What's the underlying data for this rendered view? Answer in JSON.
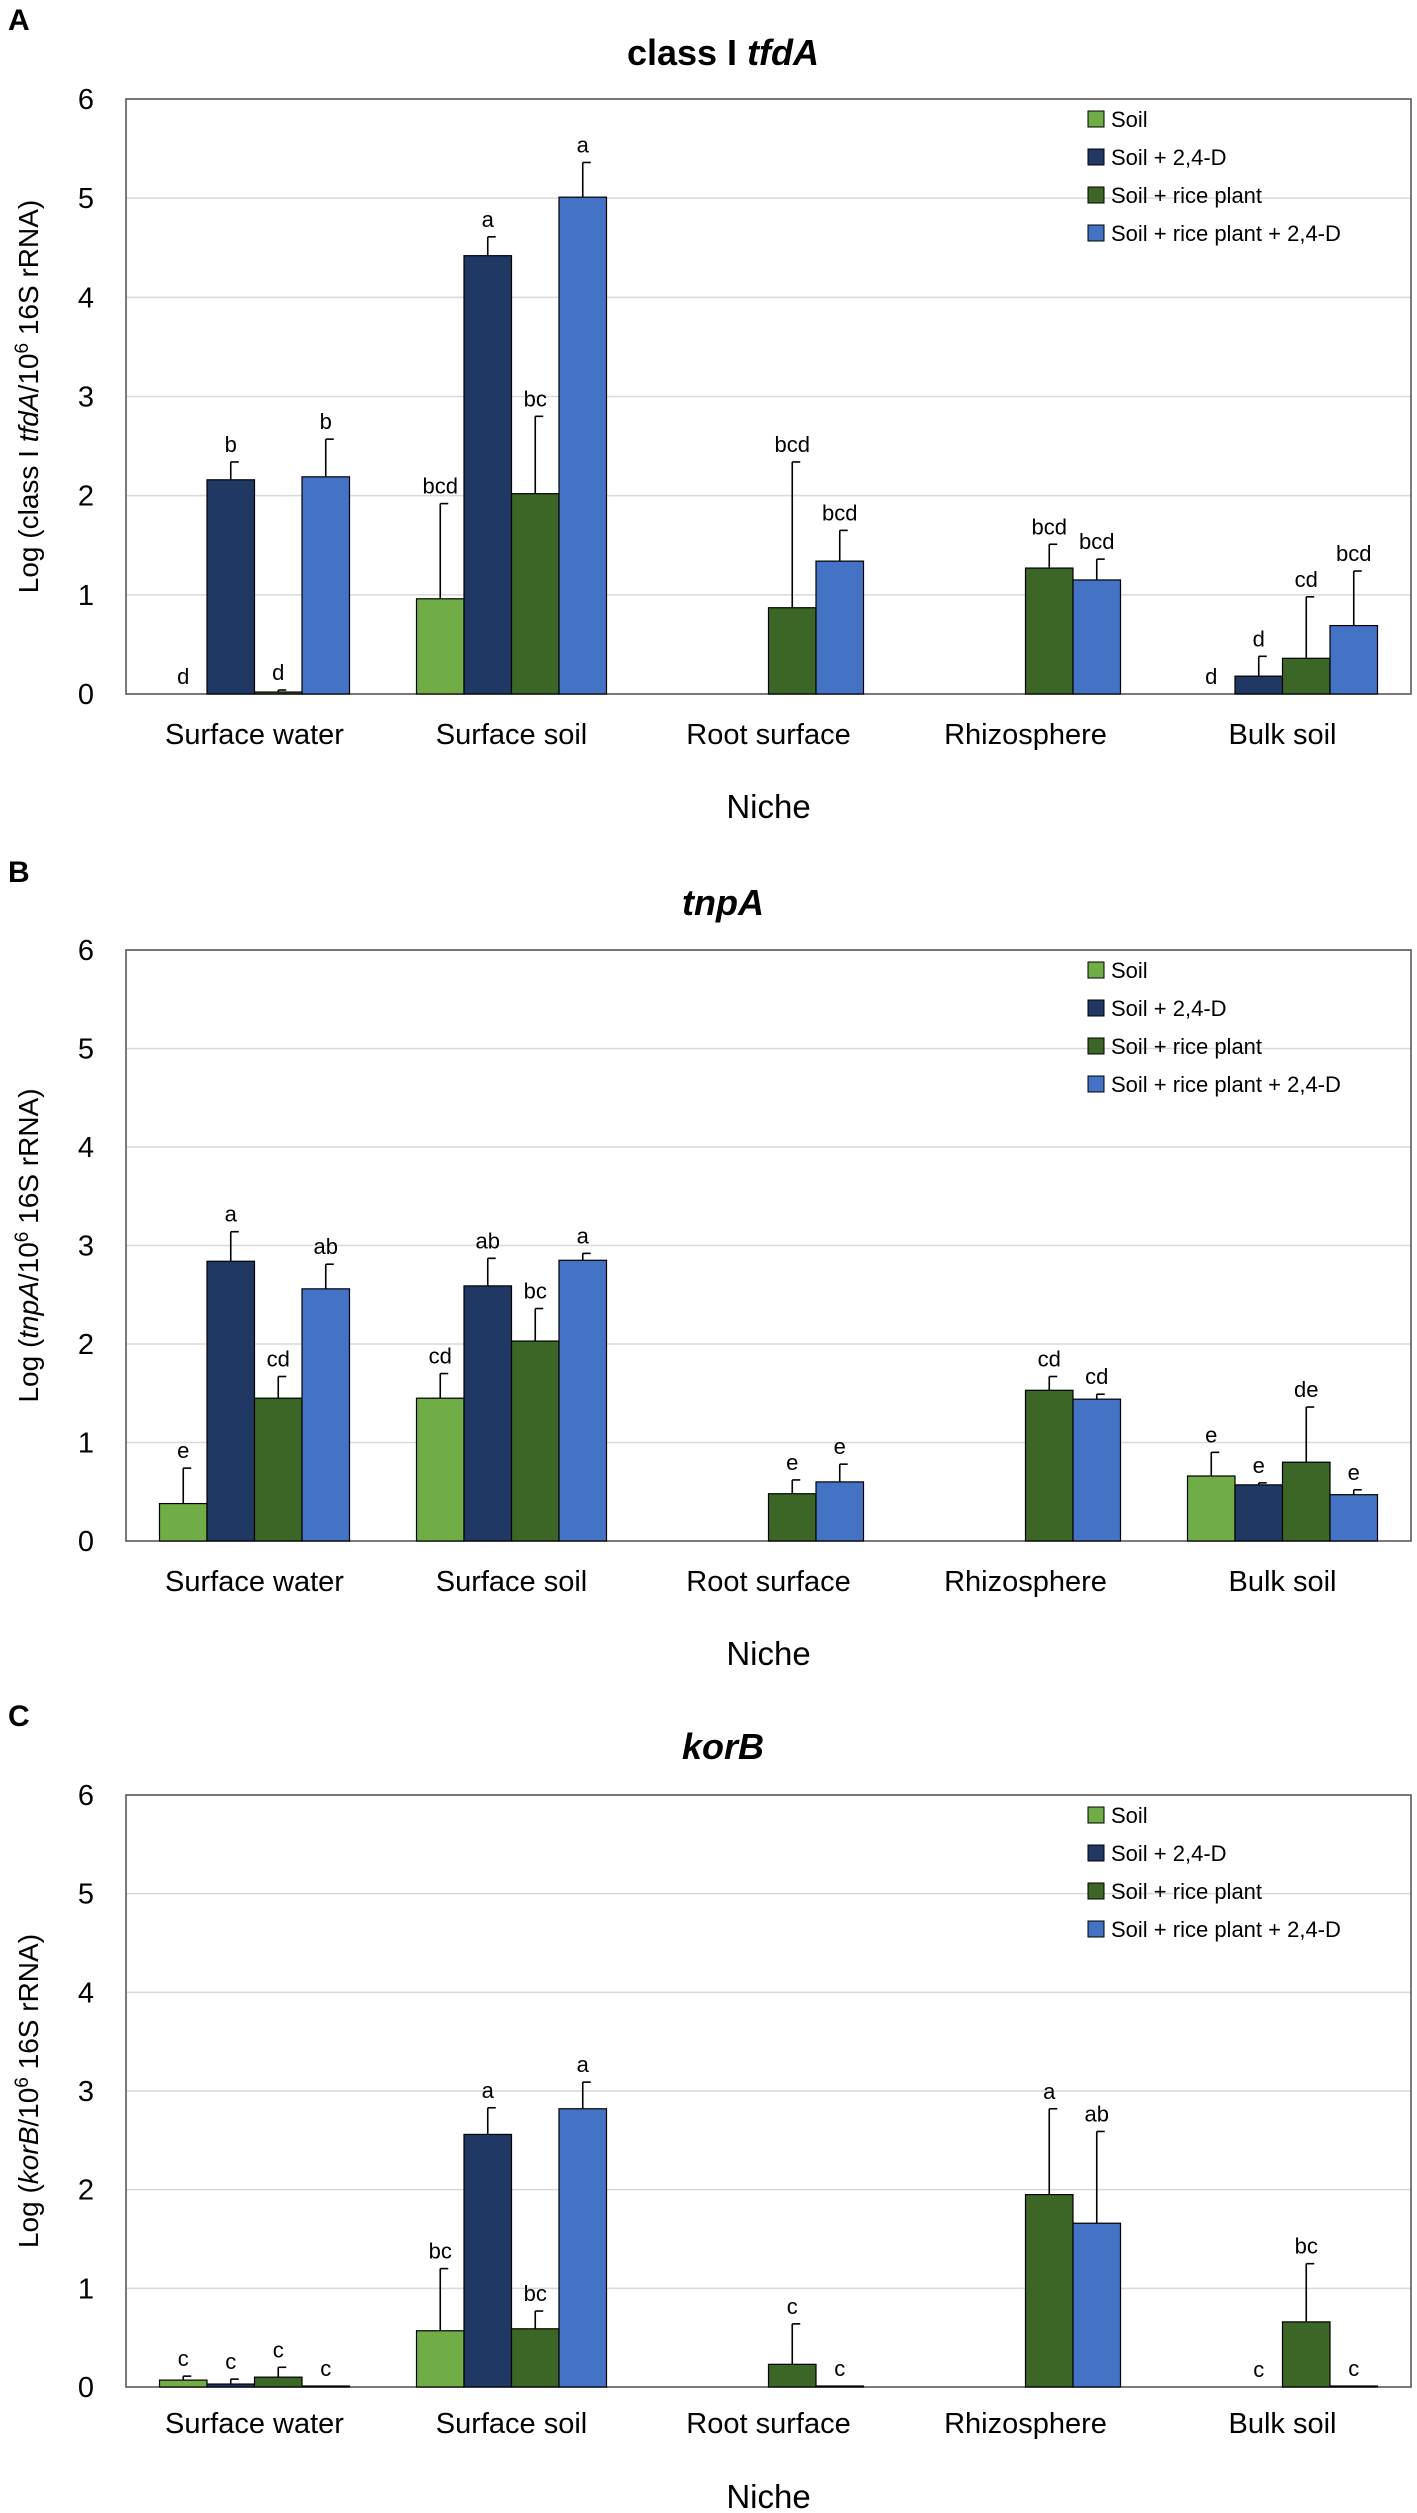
{
  "colors": {
    "Soil": "#70ad47",
    "Soil + 2,4-D": "#203864",
    "Soil + rice plant": "#3b6625",
    "Soil + rice plant + 2,4-D": "#4472c4",
    "grid": "#d9d9d9",
    "axis": "#595959"
  },
  "chart_data": [
    {
      "type": "bar",
      "panel": "A",
      "title": "class I tfdA",
      "title_plain": "class I ",
      "title_italic": "tfdA",
      "ylabel_parts": [
        "Log (class I ",
        "tfdA",
        "/10",
        "6",
        " 16S rRNA)"
      ],
      "xlabel": "Niche",
      "ylim": [
        0,
        6
      ],
      "yticks": [
        "0",
        "1",
        "2",
        "3",
        "4",
        "5",
        "6"
      ],
      "legend_position": "top-right",
      "categories": [
        "Surface water",
        "Surface soil",
        "Root surface",
        "Rhizosphere",
        "Bulk soil"
      ],
      "series": [
        {
          "name": "Soil",
          "values": [
            0,
            0.96,
            null,
            null,
            0
          ],
          "errors": [
            0,
            0.96,
            null,
            null,
            0
          ],
          "labels": [
            "d",
            "bcd",
            "",
            "",
            "d"
          ]
        },
        {
          "name": "Soil + 2,4-D",
          "values": [
            2.16,
            4.42,
            null,
            null,
            0.18
          ],
          "errors": [
            0.18,
            0.19,
            null,
            null,
            0.2
          ],
          "labels": [
            "b",
            "a",
            "",
            "",
            "d"
          ]
        },
        {
          "name": "Soil + rice plant",
          "values": [
            0.02,
            2.02,
            0.87,
            1.27,
            0.36
          ],
          "errors": [
            0.02,
            0.78,
            1.47,
            0.24,
            0.62
          ],
          "labels": [
            "d",
            "bc",
            "bcd",
            "bcd",
            "cd"
          ]
        },
        {
          "name": "Soil + rice plant + 2,4-D",
          "values": [
            2.19,
            5.01,
            1.34,
            1.15,
            0.69
          ],
          "errors": [
            0.38,
            0.35,
            0.31,
            0.21,
            0.55
          ],
          "labels": [
            "b",
            "a",
            "bcd",
            "bcd",
            "bcd"
          ]
        }
      ]
    },
    {
      "type": "bar",
      "panel": "B",
      "title": "tnpA",
      "title_plain": "",
      "title_italic": "tnpA",
      "ylabel_parts": [
        "Log (",
        "tnpA",
        "/10",
        "6",
        " 16S rRNA)"
      ],
      "xlabel": "Niche",
      "ylim": [
        0,
        6
      ],
      "yticks": [
        "0",
        "1",
        "2",
        "3",
        "4",
        "5",
        "6"
      ],
      "legend_position": "top-right",
      "categories": [
        "Surface water",
        "Surface soil",
        "Root surface",
        "Rhizosphere",
        "Bulk soil"
      ],
      "series": [
        {
          "name": "Soil",
          "values": [
            0.38,
            1.45,
            null,
            null,
            0.66
          ],
          "errors": [
            0.36,
            0.25,
            null,
            null,
            0.24
          ],
          "labels": [
            "e",
            "cd",
            "",
            "",
            "e"
          ]
        },
        {
          "name": "Soil + 2,4-D",
          "values": [
            2.84,
            2.59,
            null,
            null,
            0.57
          ],
          "errors": [
            0.3,
            0.28,
            null,
            null,
            0.02
          ],
          "labels": [
            "a",
            "ab",
            "",
            "",
            "e"
          ]
        },
        {
          "name": "Soil + rice plant",
          "values": [
            1.45,
            2.03,
            0.48,
            1.53,
            0.8
          ],
          "errors": [
            0.22,
            0.33,
            0.14,
            0.14,
            0.56
          ],
          "labels": [
            "cd",
            "bc",
            "e",
            "cd",
            "de"
          ]
        },
        {
          "name": "Soil + rice plant + 2,4-D",
          "values": [
            2.56,
            2.85,
            0.6,
            1.44,
            0.47
          ],
          "errors": [
            0.25,
            0.07,
            0.18,
            0.05,
            0.05
          ],
          "labels": [
            "ab",
            "a",
            "e",
            "cd",
            "e"
          ]
        }
      ]
    },
    {
      "type": "bar",
      "panel": "C",
      "title": "korB",
      "title_plain": "",
      "title_italic": "korB",
      "ylabel_parts": [
        "Log (",
        "korB",
        "/10",
        "6",
        " 16S rRNA)"
      ],
      "xlabel": "Niche",
      "ylim": [
        0,
        6
      ],
      "yticks": [
        "0",
        "1",
        "2",
        "3",
        "4",
        "5",
        "6"
      ],
      "legend_position": "top-right",
      "categories": [
        "Surface water",
        "Surface soil",
        "Root surface",
        "Rhizosphere",
        "Bulk soil"
      ],
      "series": [
        {
          "name": "Soil",
          "values": [
            0.07,
            0.57,
            null,
            null,
            0
          ],
          "errors": [
            0.04,
            0.63,
            null,
            null,
            0
          ],
          "labels": [
            "c",
            "bc",
            "",
            "",
            ""
          ]
        },
        {
          "name": "Soil + 2,4-D",
          "values": [
            0.03,
            2.56,
            null,
            null,
            0
          ],
          "errors": [
            0.05,
            0.27,
            null,
            null,
            0
          ],
          "labels": [
            "c",
            "a",
            "",
            "",
            "c"
          ]
        },
        {
          "name": "Soil + rice plant",
          "values": [
            0.1,
            0.59,
            0.23,
            1.95,
            0.66
          ],
          "errors": [
            0.1,
            0.18,
            0.41,
            0.87,
            0.59
          ],
          "labels": [
            "c",
            "bc",
            "c",
            "a",
            "bc"
          ]
        },
        {
          "name": "Soil + rice plant + 2,4-D",
          "values": [
            0.01,
            2.82,
            0.01,
            1.66,
            0.01
          ],
          "errors": [
            0,
            0.27,
            0,
            0.93,
            0
          ],
          "labels": [
            "c",
            "a",
            "c",
            "ab",
            "c"
          ]
        }
      ]
    }
  ]
}
